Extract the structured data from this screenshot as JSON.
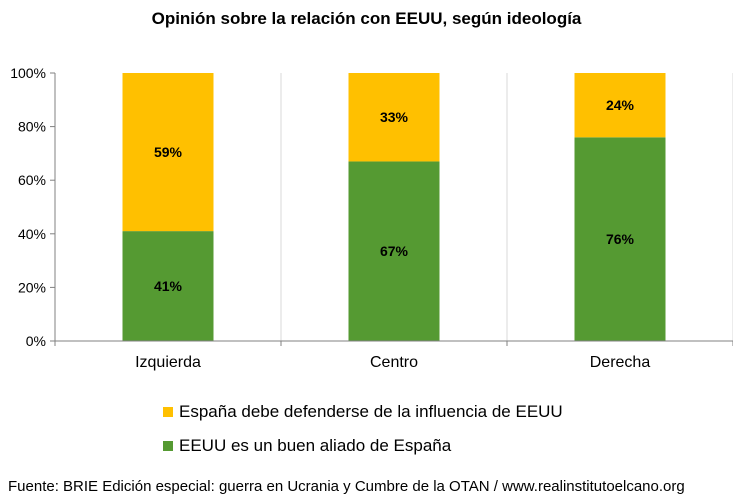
{
  "chart_data": {
    "type": "bar",
    "stacked": true,
    "title": "Opinión sobre la relación con EEUU, según ideología",
    "categories": [
      "Izquierda",
      "Centro",
      "Derecha"
    ],
    "series": [
      {
        "name": "EEUU es un buen aliado de España",
        "values": [
          41,
          67,
          76
        ],
        "labels": [
          "41%",
          "67%",
          "76%"
        ],
        "color": "#559A32"
      },
      {
        "name": "España debe defenderse de la influencia de EEUU",
        "values": [
          59,
          33,
          24
        ],
        "labels": [
          "59%",
          "33%",
          "24%"
        ],
        "color": "#FFC000"
      }
    ],
    "ylim": [
      0,
      100
    ],
    "yticks": [
      "0%",
      "20%",
      "40%",
      "60%",
      "80%",
      "100%"
    ],
    "grid": false,
    "legend_position": "bottom"
  },
  "legend": {
    "items": [
      {
        "label": "España debe defenderse de la influencia de EEUU",
        "color": "#FFC000"
      },
      {
        "label": "EEUU es un buen aliado de España",
        "color": "#559A32"
      }
    ]
  },
  "source": "Fuente: BRIE Edición especial: guerra en Ucrania y Cumbre de la OTAN / www.realinstitutoelcano.org"
}
